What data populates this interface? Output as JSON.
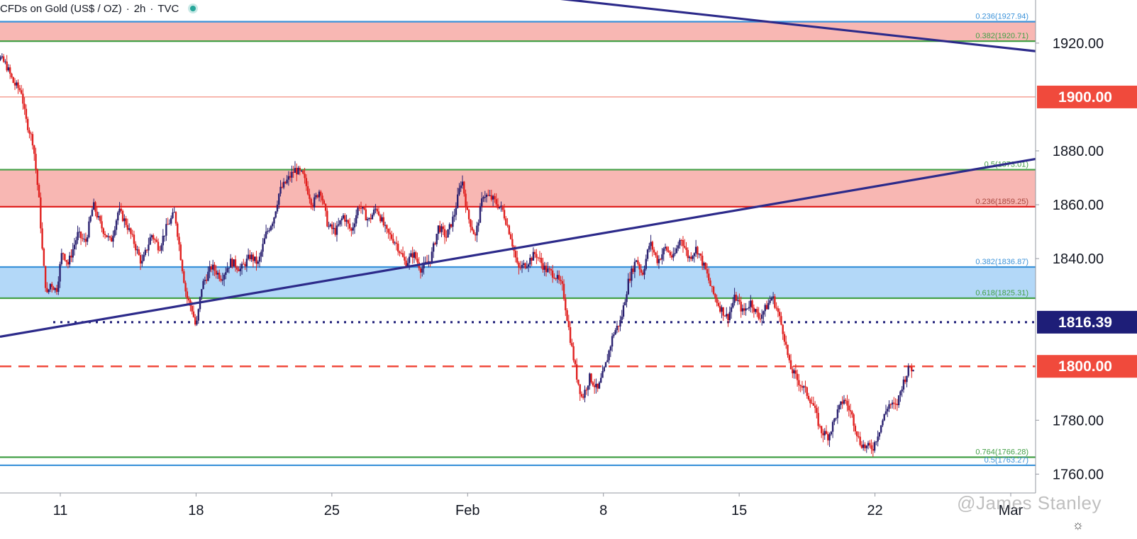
{
  "header": {
    "symbol": "CFDs on Gold (US$ / OZ)",
    "interval": "2h",
    "source": "TVC",
    "status_color": "#26a69a"
  },
  "watermark": "@James Stanley",
  "settings_icon": "gear-icon",
  "colors": {
    "bull": "#2a2170",
    "bear": "#e0201f",
    "zone_red": "#f8b7b3",
    "zone_blue": "#b3d8f8",
    "fib_green": "#43a047",
    "fib_blue": "#3b92d9",
    "trendline": "#2c2a8a",
    "price_red": "#f04a3c",
    "price_navy": "#1e1e78"
  },
  "chart_data": {
    "type": "candlestick",
    "ylim": [
      1753,
      1936
    ],
    "y_ticks": [
      "1920.00",
      "1880.00",
      "1860.00",
      "1840.00",
      "1780.00",
      "1760.00"
    ],
    "x_ticks": [
      "11",
      "18",
      "25",
      "Feb",
      "8",
      "15",
      "22",
      "Mar"
    ],
    "price_labels": [
      {
        "label": "1900.00",
        "value": 1900.0,
        "style": "red"
      },
      {
        "label": "1816.39",
        "value": 1816.39,
        "style": "navy"
      },
      {
        "label": "1800.00",
        "value": 1800.0,
        "style": "red"
      }
    ],
    "zones": [
      {
        "from": 1920.71,
        "to": 1927.94,
        "color": "red"
      },
      {
        "from": 1859.25,
        "to": 1873.01,
        "color": "red"
      },
      {
        "from": 1825.31,
        "to": 1836.87,
        "color": "blue"
      }
    ],
    "fib_levels": [
      {
        "label": "0.236(1927.94)",
        "value": 1927.94,
        "color": "blue"
      },
      {
        "label": "0.382(1920.71)",
        "value": 1920.71,
        "color": "green"
      },
      {
        "label": "0.5(1873.01)",
        "value": 1873.01,
        "color": "green"
      },
      {
        "label": "0.236(1859.25)",
        "value": 1859.25,
        "color": "red"
      },
      {
        "label": "0.382(1836.87)",
        "value": 1836.87,
        "color": "blue"
      },
      {
        "label": "0.618(1825.31)",
        "value": 1825.31,
        "color": "green"
      },
      {
        "label": "0.764(1766.28)",
        "value": 1766.28,
        "color": "green"
      },
      {
        "label": "0.5(1763.27)",
        "value": 1763.27,
        "color": "blue"
      }
    ],
    "horizontal_lines": [
      {
        "value": 1900.0,
        "style": "solid-thin",
        "color": "red"
      },
      {
        "value": 1816.39,
        "style": "dotted",
        "color": "navy",
        "from_x": 15.0
      },
      {
        "value": 1800.0,
        "style": "dashed",
        "color": "red"
      }
    ],
    "trendlines": [
      {
        "from": [
          -6,
          1937
        ],
        "to": [
          56,
          1917
        ]
      },
      {
        "from": [
          -0.0,
          1811
        ],
        "to": [
          56,
          1877
        ]
      }
    ],
    "x_domain": [
      7.0,
      60.0
    ],
    "x_tick_positions": [
      11,
      18,
      25,
      32,
      39,
      46,
      53,
      60
    ],
    "anchors": [
      [
        7.0,
        1929
      ],
      [
        7.4,
        1918
      ],
      [
        8.2,
        1912
      ],
      [
        8.6,
        1905
      ],
      [
        9.0,
        1902
      ],
      [
        9.2,
        1892
      ],
      [
        9.6,
        1883
      ],
      [
        9.9,
        1862
      ],
      [
        10.1,
        1840
      ],
      [
        10.3,
        1826
      ],
      [
        10.5,
        1831
      ],
      [
        10.8,
        1828
      ],
      [
        11.1,
        1843
      ],
      [
        11.4,
        1838
      ],
      [
        11.9,
        1849
      ],
      [
        12.3,
        1846
      ],
      [
        12.7,
        1860
      ],
      [
        13.1,
        1852
      ],
      [
        13.6,
        1846
      ],
      [
        14.0,
        1858
      ],
      [
        14.4,
        1853
      ],
      [
        14.8,
        1846
      ],
      [
        15.2,
        1838
      ],
      [
        15.7,
        1849
      ],
      [
        16.1,
        1844
      ],
      [
        16.5,
        1852
      ],
      [
        16.9,
        1857
      ],
      [
        17.3,
        1836
      ],
      [
        17.5,
        1826
      ],
      [
        17.8,
        1821
      ],
      [
        18.0,
        1814
      ],
      [
        18.3,
        1830
      ],
      [
        18.8,
        1837
      ],
      [
        19.3,
        1833
      ],
      [
        19.8,
        1839
      ],
      [
        20.3,
        1836
      ],
      [
        20.8,
        1841
      ],
      [
        21.2,
        1838
      ],
      [
        21.6,
        1849
      ],
      [
        22.0,
        1855
      ],
      [
        22.3,
        1865
      ],
      [
        22.7,
        1869
      ],
      [
        23.1,
        1873
      ],
      [
        23.5,
        1871
      ],
      [
        24.0,
        1860
      ],
      [
        24.4,
        1866
      ],
      [
        24.8,
        1852
      ],
      [
        25.2,
        1850
      ],
      [
        25.6,
        1856
      ],
      [
        26.0,
        1850
      ],
      [
        26.4,
        1860
      ],
      [
        26.9,
        1854
      ],
      [
        27.3,
        1859
      ],
      [
        27.8,
        1850
      ],
      [
        28.3,
        1846
      ],
      [
        28.8,
        1838
      ],
      [
        29.2,
        1842
      ],
      [
        29.6,
        1836
      ],
      [
        30.1,
        1840
      ],
      [
        30.5,
        1852
      ],
      [
        30.9,
        1848
      ],
      [
        31.3,
        1856
      ],
      [
        31.7,
        1870
      ],
      [
        32.0,
        1856
      ],
      [
        32.4,
        1848
      ],
      [
        32.8,
        1864
      ],
      [
        33.3,
        1862
      ],
      [
        33.8,
        1858
      ],
      [
        34.2,
        1849
      ],
      [
        34.6,
        1836
      ],
      [
        35.0,
        1838
      ],
      [
        35.5,
        1842
      ],
      [
        36.0,
        1836
      ],
      [
        36.5,
        1834
      ],
      [
        36.9,
        1829
      ],
      [
        37.3,
        1810
      ],
      [
        37.6,
        1797
      ],
      [
        37.9,
        1788
      ],
      [
        38.3,
        1796
      ],
      [
        38.7,
        1791
      ],
      [
        39.1,
        1800
      ],
      [
        39.5,
        1812
      ],
      [
        39.9,
        1817
      ],
      [
        40.3,
        1832
      ],
      [
        40.7,
        1840
      ],
      [
        41.0,
        1834
      ],
      [
        41.4,
        1846
      ],
      [
        41.8,
        1839
      ],
      [
        42.2,
        1844
      ],
      [
        42.6,
        1840
      ],
      [
        43.0,
        1848
      ],
      [
        43.4,
        1840
      ],
      [
        43.8,
        1844
      ],
      [
        44.3,
        1835
      ],
      [
        44.6,
        1828
      ],
      [
        45.0,
        1822
      ],
      [
        45.4,
        1818
      ],
      [
        45.8,
        1826
      ],
      [
        46.2,
        1820
      ],
      [
        46.6,
        1824
      ],
      [
        47.0,
        1818
      ],
      [
        47.4,
        1822
      ],
      [
        47.7,
        1826
      ],
      [
        48.0,
        1820
      ],
      [
        48.3,
        1812
      ],
      [
        48.6,
        1800
      ],
      [
        49.0,
        1795
      ],
      [
        49.4,
        1791
      ],
      [
        49.8,
        1786
      ],
      [
        50.2,
        1776
      ],
      [
        50.6,
        1774
      ],
      [
        51.0,
        1782
      ],
      [
        51.4,
        1788
      ],
      [
        51.8,
        1782
      ],
      [
        52.2,
        1772
      ],
      [
        52.5,
        1770
      ],
      [
        52.9,
        1770
      ],
      [
        53.3,
        1778
      ],
      [
        53.7,
        1786
      ],
      [
        54.1,
        1785
      ],
      [
        54.4,
        1793
      ],
      [
        54.8,
        1800
      ],
      [
        55.0,
        1798
      ]
    ]
  }
}
